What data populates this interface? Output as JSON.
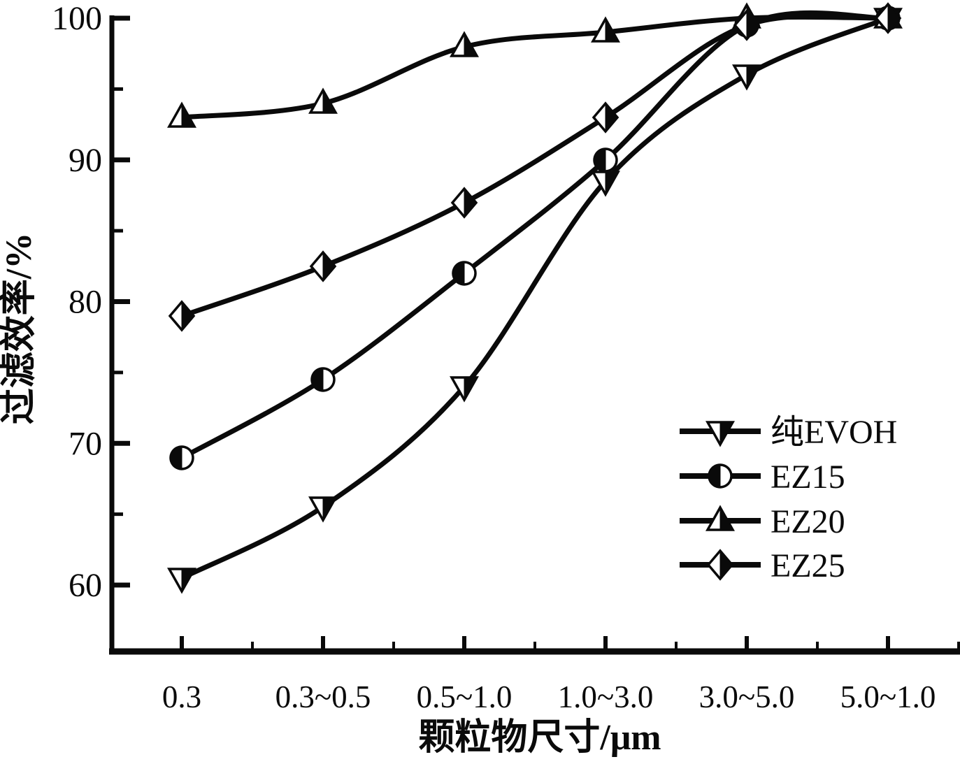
{
  "chart_data": {
    "type": "line",
    "title": "",
    "xlabel": "颗粒物尺寸/μm",
    "ylabel": "过滤效率/%",
    "categories": [
      "0.3",
      "0.3~0.5",
      "0.5~1.0",
      "1.0~3.0",
      "3.0~5.0",
      "5.0~1.0"
    ],
    "y_ticks": [
      60,
      70,
      80,
      90,
      100
    ],
    "y_minor_ticks": [
      65,
      75,
      85,
      95
    ],
    "ylim": [
      55.4,
      100.3
    ],
    "grid": false,
    "legend_position": "right-center",
    "series": [
      {
        "name": "纯EVOH",
        "marker": "triangle-down-half-right",
        "values": [
          60.5,
          65.5,
          74,
          88.5,
          96,
          100
        ]
      },
      {
        "name": "EZ15",
        "marker": "circle-half-left",
        "values": [
          69,
          74.5,
          82,
          90,
          99.5,
          100
        ]
      },
      {
        "name": "EZ20",
        "marker": "triangle-up-half-right",
        "values": [
          93,
          94,
          98,
          99,
          100,
          100
        ]
      },
      {
        "name": "EZ25",
        "marker": "diamond-half-right",
        "values": [
          79,
          82.5,
          87,
          93,
          99.5,
          100
        ]
      }
    ],
    "colors": {
      "line": "#0a0a0a",
      "marker_fill": "#0a0a0a",
      "marker_empty": "#ffffff",
      "background": "#ffffff"
    }
  }
}
